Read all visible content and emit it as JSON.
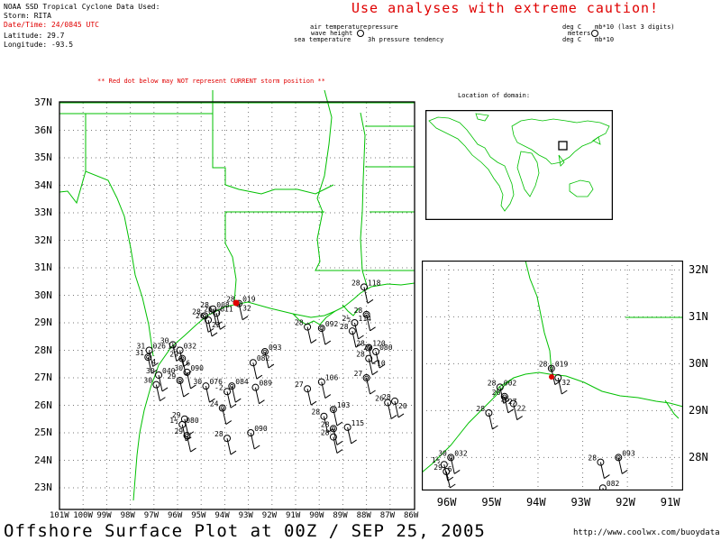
{
  "header": {
    "source": "NOAA SSD Tropical Cyclone Data Used:",
    "storm": "Storm: RITA",
    "datetime": "Date/Time: 24/0845 UTC",
    "latitude": "Latitude: 29.7",
    "longitude": "Longitude: -93.5",
    "caution": "Use analyses with extreme caution!"
  },
  "legend": {
    "air_temp": "air temperature",
    "pressure": "pressure",
    "wave_height": "wave height",
    "sea_temp": "sea temperature",
    "pressure_tendency": "3h pressure tendency",
    "unit_deg1": "deg C",
    "unit_mb1": "mb*10 (last 3 digits)",
    "unit_meters": "meters",
    "unit_deg2": "deg C",
    "unit_mb2": "mb*10"
  },
  "warning": "** Red dot below may NOT represent CURRENT storm position **",
  "location_label": "Location of domain:",
  "main_map": {
    "lat_labels": [
      "37N",
      "36N",
      "35N",
      "34N",
      "33N",
      "32N",
      "31N",
      "30N",
      "29N",
      "28N",
      "27N",
      "26N",
      "25N",
      "24N",
      "23N"
    ],
    "lon_labels": [
      "101W",
      "100W",
      "99W",
      "98W",
      "97W",
      "96W",
      "95W",
      "94W",
      "93W",
      "92W",
      "91W",
      "90W",
      "89W",
      "88W",
      "87W",
      "86W"
    ]
  },
  "inset_map": {
    "lat_labels": [
      "32N",
      "31N",
      "30N",
      "29N",
      "28N"
    ],
    "lon_labels": [
      "96W",
      "95W",
      "94W",
      "93W",
      "92W",
      "91W"
    ]
  },
  "storm_marker": {
    "lat": 29.7,
    "lon": -93.5,
    "color": "#e00000"
  },
  "observations": {
    "main": [
      {
        "t": "28",
        "p": "019",
        "tt": "32",
        "lat": 29.7,
        "lon": -93.4
      },
      {
        "t": "28",
        "p": "008",
        "tt": "",
        "lat": 29.5,
        "lon": -94.5
      },
      {
        "t": "26",
        "p": "011",
        "tt": "",
        "lat": 29.35,
        "lon": -94.35
      },
      {
        "t": "28",
        "p": "027",
        "tt": "",
        "lat": 29.25,
        "lon": -94.85
      },
      {
        "t": "26",
        "p": "",
        "tt": "22",
        "lat": 29.1,
        "lon": -94.7
      },
      {
        "t": "31",
        "p": "026",
        "tt": "",
        "lat": 28.0,
        "lon": -97.2
      },
      {
        "t": "31",
        "p": "",
        "tt": "4",
        "lat": 27.75,
        "lon": -97.25
      },
      {
        "t": "30",
        "p": "",
        "tt": "",
        "lat": 28.2,
        "lon": -96.2
      },
      {
        "t": "1½",
        "p": "032",
        "tt": "",
        "lat": 28.0,
        "lon": -95.9
      },
      {
        "t": "29",
        "p": "",
        "tt": "6",
        "lat": 27.7,
        "lon": -95.8
      },
      {
        "t": "30",
        "p": "040",
        "tt": "",
        "lat": 27.1,
        "lon": -96.8
      },
      {
        "t": "30",
        "p": "090",
        "tt": "",
        "lat": 27.2,
        "lon": -95.6
      },
      {
        "t": "29",
        "p": "",
        "tt": "",
        "lat": 26.9,
        "lon": -95.9
      },
      {
        "t": "30",
        "p": "",
        "tt": "",
        "lat": 26.75,
        "lon": -96.9
      },
      {
        "t": "30",
        "p": "076",
        "tt": "",
        "lat": 26.7,
        "lon": -94.8
      },
      {
        "t": "",
        "p": "084",
        "tt": "",
        "lat": 26.7,
        "lon": -93.7
      },
      {
        "t": "",
        "p": "089",
        "tt": "",
        "lat": 26.65,
        "lon": -92.7
      },
      {
        "t": "-2",
        "p": "",
        "tt": "",
        "lat": 26.5,
        "lon": -93.9
      },
      {
        "t": "24",
        "p": "",
        "tt": "",
        "lat": 25.9,
        "lon": -94.1
      },
      {
        "t": "29",
        "p": "",
        "tt": "",
        "lat": 25.5,
        "lon": -95.7
      },
      {
        "t": "1½",
        "p": "080",
        "tt": "",
        "lat": 25.3,
        "lon": -95.8
      },
      {
        "t": "29",
        "p": "",
        "tt": "",
        "lat": 24.9,
        "lon": -95.6
      },
      {
        "t": "28",
        "p": "",
        "tt": "",
        "lat": 24.8,
        "lon": -93.9
      },
      {
        "t": "",
        "p": "090",
        "tt": "",
        "lat": 25.0,
        "lon": -92.9
      },
      {
        "t": "",
        "p": "093",
        "tt": "",
        "lat": 27.95,
        "lon": -92.3
      },
      {
        "t": "",
        "p": "082",
        "tt": "",
        "lat": 27.55,
        "lon": -92.8
      },
      {
        "t": "28",
        "p": "",
        "tt": "",
        "lat": 28.85,
        "lon": -90.5
      },
      {
        "t": "",
        "p": "092",
        "tt": "",
        "lat": 28.8,
        "lon": -89.9
      },
      {
        "t": "27",
        "p": "",
        "tt": "",
        "lat": 26.6,
        "lon": -90.5
      },
      {
        "t": "",
        "p": "106",
        "tt": "",
        "lat": 26.85,
        "lon": -89.9
      },
      {
        "t": "",
        "p": "103",
        "tt": "",
        "lat": 25.85,
        "lon": -89.4
      },
      {
        "t": "28",
        "p": "",
        "tt": "",
        "lat": 25.6,
        "lon": -89.8
      },
      {
        "t": "",
        "p": "115",
        "tt": "",
        "lat": 25.2,
        "lon": -88.8
      },
      {
        "t": "28",
        "p": "",
        "tt": "",
        "lat": 25.15,
        "lon": -89.4
      },
      {
        "t": "28",
        "p": "",
        "tt": "",
        "lat": 24.85,
        "lon": -89.4
      },
      {
        "t": "28",
        "p": "118",
        "tt": "",
        "lat": 30.3,
        "lon": -88.1
      },
      {
        "t": "28",
        "p": "",
        "tt": "",
        "lat": 29.3,
        "lon": -88.0
      },
      {
        "t": "2½",
        "p": "114",
        "tt": "",
        "lat": 29.0,
        "lon": -88.5
      },
      {
        "t": "28",
        "p": "",
        "tt": "",
        "lat": 28.7,
        "lon": -88.6
      },
      {
        "t": "28",
        "p": "120",
        "tt": "",
        "lat": 28.1,
        "lon": -87.9
      },
      {
        "t": "29",
        "p": "080",
        "tt": "",
        "lat": 27.95,
        "lon": -87.6
      },
      {
        "t": "28",
        "p": "",
        "tt": "-10",
        "lat": 27.7,
        "lon": -87.9
      },
      {
        "t": "27",
        "p": "",
        "tt": "",
        "lat": 27.0,
        "lon": -88.0
      },
      {
        "t": "26",
        "p": "",
        "tt": "",
        "lat": 26.1,
        "lon": -87.1
      },
      {
        "t": "28",
        "p": "",
        "tt": "20",
        "lat": 26.15,
        "lon": -86.8
      }
    ],
    "inset": [
      {
        "t": "28",
        "p": "019",
        "tt": "",
        "lat": 29.9,
        "lon": -93.7
      },
      {
        "t": "",
        "p": "",
        "tt": "32",
        "lat": 29.7,
        "lon": -93.55
      },
      {
        "t": "28",
        "p": "002",
        "tt": "",
        "lat": 29.5,
        "lon": -94.85
      },
      {
        "t": "26",
        "p": "",
        "tt": "27",
        "lat": 29.3,
        "lon": -94.75
      },
      {
        "t": "26",
        "p": "",
        "tt": "22",
        "lat": 29.15,
        "lon": -94.55
      },
      {
        "t": "28",
        "p": "",
        "tt": "",
        "lat": 28.95,
        "lon": -95.1
      },
      {
        "t": "30",
        "p": "032",
        "tt": "",
        "lat": 28.0,
        "lon": -95.95
      },
      {
        "t": "1½",
        "p": "",
        "tt": "6",
        "lat": 27.85,
        "lon": -96.1
      },
      {
        "t": "29",
        "p": "",
        "tt": "",
        "lat": 27.7,
        "lon": -96.05
      },
      {
        "t": "",
        "p": "093",
        "tt": "",
        "lat": 28.0,
        "lon": -92.2
      },
      {
        "t": "28",
        "p": "",
        "tt": "",
        "lat": 27.9,
        "lon": -92.6
      },
      {
        "t": "",
        "p": "082",
        "tt": "",
        "lat": 27.35,
        "lon": -92.55
      },
      {
        "t": "28",
        "p": "",
        "tt": "",
        "lat": 29.05,
        "lon": -90.1
      },
      {
        "t": "30",
        "p": "",
        "tt": "",
        "lat": 28.9,
        "lon": -90.1
      }
    ]
  },
  "main_title": "Offshore Surface Plot at 00Z / SEP 25, 2005",
  "url": "http://www.coolwx.com/buoydata",
  "colors": {
    "land_outline": "#00c000",
    "grid": "#666666",
    "frame": "#000000",
    "storm": "#e00000",
    "text_red": "#e00000"
  }
}
